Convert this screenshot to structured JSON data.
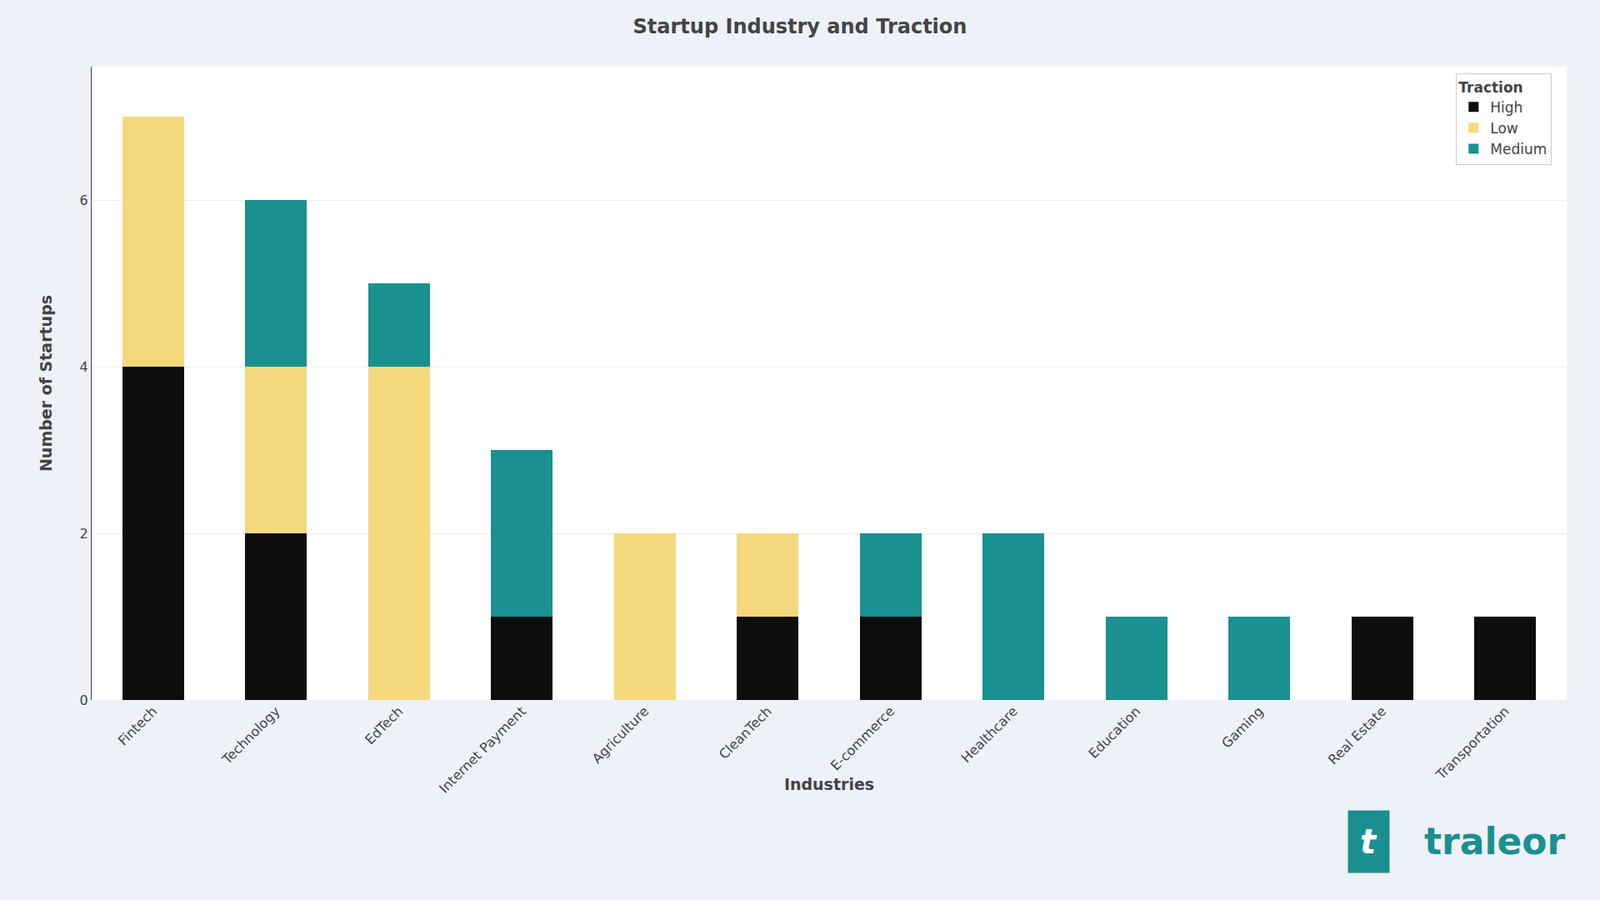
{
  "chart_data": {
    "type": "bar",
    "stacked": true,
    "title": "Startup Industry and Traction",
    "xlabel": "Industries",
    "ylabel": "Number of Startups",
    "categories": [
      "Fintech",
      "Technology",
      "EdTech",
      "Internet Payment",
      "Agriculture",
      "CleanTech",
      "E-commerce",
      "Healthcare",
      "Education",
      "Gaming",
      "Real Estate",
      "Transportation"
    ],
    "series": [
      {
        "name": "High",
        "color": "#0d0d0d",
        "values": [
          4,
          2,
          0,
          1,
          0,
          1,
          1,
          0,
          0,
          0,
          1,
          1
        ]
      },
      {
        "name": "Low",
        "color": "#f5d97e",
        "values": [
          3,
          2,
          4,
          0,
          2,
          1,
          0,
          0,
          0,
          0,
          0,
          0
        ]
      },
      {
        "name": "Medium",
        "color": "#1a9090",
        "values": [
          0,
          2,
          1,
          2,
          0,
          0,
          1,
          2,
          1,
          1,
          0,
          0
        ]
      }
    ],
    "ylim": [
      0,
      7.6
    ],
    "yticks": [
      0,
      2,
      4,
      6
    ],
    "grid": true,
    "legend": "upper right",
    "legend_title": "Traction",
    "annotations": [
      {
        "text": "t",
        "color": "#1a9090"
      },
      {
        "text": "traleor",
        "color": "#1a9090"
      }
    ]
  }
}
